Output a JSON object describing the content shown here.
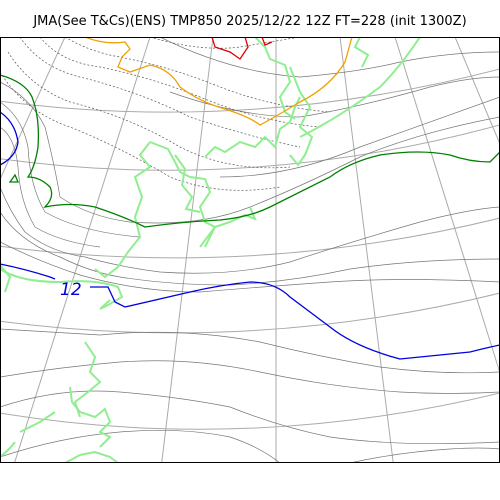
{
  "header": {
    "title": "JMA(See T&Cs)(ENS) TMP850 2025/12/22 12Z FT=228 (init 1300Z)"
  },
  "map": {
    "field": "TMP850",
    "contour_labels": [
      {
        "text": "12",
        "color": "#0000dd"
      }
    ],
    "colors": {
      "coastline": "#90ee90",
      "graticule": "#aaaaaa",
      "contour_minor": "#777777",
      "contour_major": "#000000",
      "isotherm_green": "#008000",
      "isotherm_orange": "#f0a000",
      "isotherm_red": "#e00000",
      "isotherm_blue": "#0000dd"
    }
  }
}
